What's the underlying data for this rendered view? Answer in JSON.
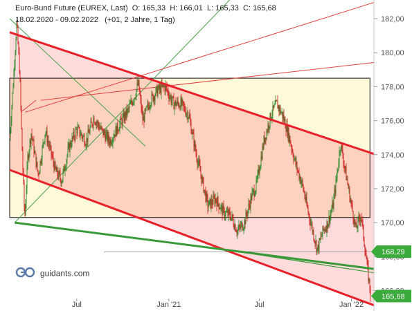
{
  "header": {
    "instrument": "Euro-Bund Future (EUREX, Last)",
    "open": "O: 165,33",
    "high": "H: 166,01",
    "low": "L: 165,33",
    "close": "C: 165,68",
    "range": "18.02.2020 - 09.02.2022",
    "params": "(+01, 2 Jahre, 1 Tag)"
  },
  "logo_text": "guidants.com",
  "colors": {
    "up": "#2e8b2e",
    "down": "#cc2222",
    "trend_red": "#e8202a",
    "trend_green": "#3a9a3a",
    "thin_green": "#4aa04a",
    "thin_red": "#e04040",
    "zone_yellow": "#fff9da",
    "zone_pink": "#ffd6d6",
    "zone_peach": "#ffd2bf",
    "badge_green": "#3aaa3a"
  },
  "chart_data": {
    "type": "candlestick",
    "xlabels": [
      "Jul",
      "Jan '21",
      "Jul",
      "Jan '22"
    ],
    "x_dates": [
      "2020-07-01",
      "2021-01-01",
      "2021-07-01",
      "2022-01-01"
    ],
    "ylabels": [
      "166,00",
      "168,00",
      "170,00",
      "172,00",
      "174,00",
      "176,00",
      "178,00",
      "180,00",
      "182,00"
    ],
    "ylim": [
      164.8,
      183.1
    ],
    "badges": [
      {
        "label": "168,29",
        "value": 168.29
      },
      {
        "label": "165,68",
        "value": 165.68
      }
    ],
    "rectangle": {
      "from": "2020-02-18",
      "to": "2022-02-07",
      "top": 178.5,
      "bottom": 170.3
    },
    "channel_upper": [
      [
        "2020-02-18",
        181.2
      ],
      [
        "2022-02-09",
        174.1
      ]
    ],
    "channel_lower": [
      [
        "2020-02-18",
        173.1
      ],
      [
        "2022-02-09",
        165.2
      ]
    ],
    "green_support": [
      [
        "2020-02-28",
        170.0
      ],
      [
        "2022-02-09",
        167.3
      ]
    ],
    "trend_thin_green_1": [
      [
        "2020-02-28",
        170.0
      ],
      [
        "2021-06-01",
        184.0
      ]
    ],
    "trend_thin_green_2": [
      [
        "2020-02-18",
        182.0
      ],
      [
        "2020-11-15",
        174.5
      ]
    ],
    "trend_thin_red_1": [
      [
        "2020-03-20",
        176.5
      ],
      [
        "2022-02-09",
        182.9
      ]
    ],
    "trend_thin_red_2": [
      [
        "2020-04-20",
        177.2
      ],
      [
        "2022-02-09",
        179.4
      ]
    ],
    "anchors": [
      [
        "2020-02-18",
        175.0
      ],
      [
        "2020-02-25",
        178.2
      ],
      [
        "2020-03-03",
        181.8
      ],
      [
        "2020-03-09",
        178.8
      ],
      [
        "2020-03-13",
        175.0
      ],
      [
        "2020-03-19",
        170.2
      ],
      [
        "2020-03-25",
        173.8
      ],
      [
        "2020-04-01",
        175.3
      ],
      [
        "2020-04-15",
        172.8
      ],
      [
        "2020-04-29",
        175.4
      ],
      [
        "2020-05-20",
        173.0
      ],
      [
        "2020-06-01",
        172.5
      ],
      [
        "2020-06-15",
        174.4
      ],
      [
        "2020-07-01",
        175.5
      ],
      [
        "2020-07-20",
        174.8
      ],
      [
        "2020-08-04",
        176.2
      ],
      [
        "2020-08-20",
        175.4
      ],
      [
        "2020-09-05",
        174.8
      ],
      [
        "2020-09-25",
        175.8
      ],
      [
        "2020-10-10",
        176.5
      ],
      [
        "2020-10-25",
        177.5
      ],
      [
        "2020-11-01",
        178.2
      ],
      [
        "2020-11-10",
        176.0
      ],
      [
        "2020-11-25",
        177.2
      ],
      [
        "2020-12-10",
        177.8
      ],
      [
        "2020-12-25",
        178.0
      ],
      [
        "2021-01-10",
        177.0
      ],
      [
        "2021-01-25",
        177.0
      ],
      [
        "2021-02-10",
        176.3
      ],
      [
        "2021-02-25",
        174.0
      ],
      [
        "2021-03-10",
        172.3
      ],
      [
        "2021-03-20",
        171.0
      ],
      [
        "2021-04-05",
        171.4
      ],
      [
        "2021-04-20",
        170.6
      ],
      [
        "2021-05-05",
        170.4
      ],
      [
        "2021-05-18",
        169.5
      ],
      [
        "2021-06-01",
        170.0
      ],
      [
        "2021-06-15",
        171.5
      ],
      [
        "2021-06-25",
        172.2
      ],
      [
        "2021-07-10",
        174.8
      ],
      [
        "2021-07-25",
        176.4
      ],
      [
        "2021-08-05",
        177.0
      ],
      [
        "2021-08-18",
        176.2
      ],
      [
        "2021-08-30",
        175.0
      ],
      [
        "2021-09-10",
        173.6
      ],
      [
        "2021-09-25",
        172.2
      ],
      [
        "2021-10-05",
        170.8
      ],
      [
        "2021-10-15",
        169.6
      ],
      [
        "2021-10-25",
        168.4
      ],
      [
        "2021-11-05",
        169.5
      ],
      [
        "2021-11-15",
        170.0
      ],
      [
        "2021-11-25",
        171.0
      ],
      [
        "2021-12-03",
        172.8
      ],
      [
        "2021-12-10",
        174.7
      ],
      [
        "2021-12-20",
        173.0
      ],
      [
        "2022-01-01",
        171.0
      ],
      [
        "2022-01-10",
        169.6
      ],
      [
        "2022-01-20",
        170.5
      ],
      [
        "2022-01-28",
        168.5
      ],
      [
        "2022-02-03",
        167.0
      ],
      [
        "2022-02-09",
        165.68
      ]
    ]
  }
}
